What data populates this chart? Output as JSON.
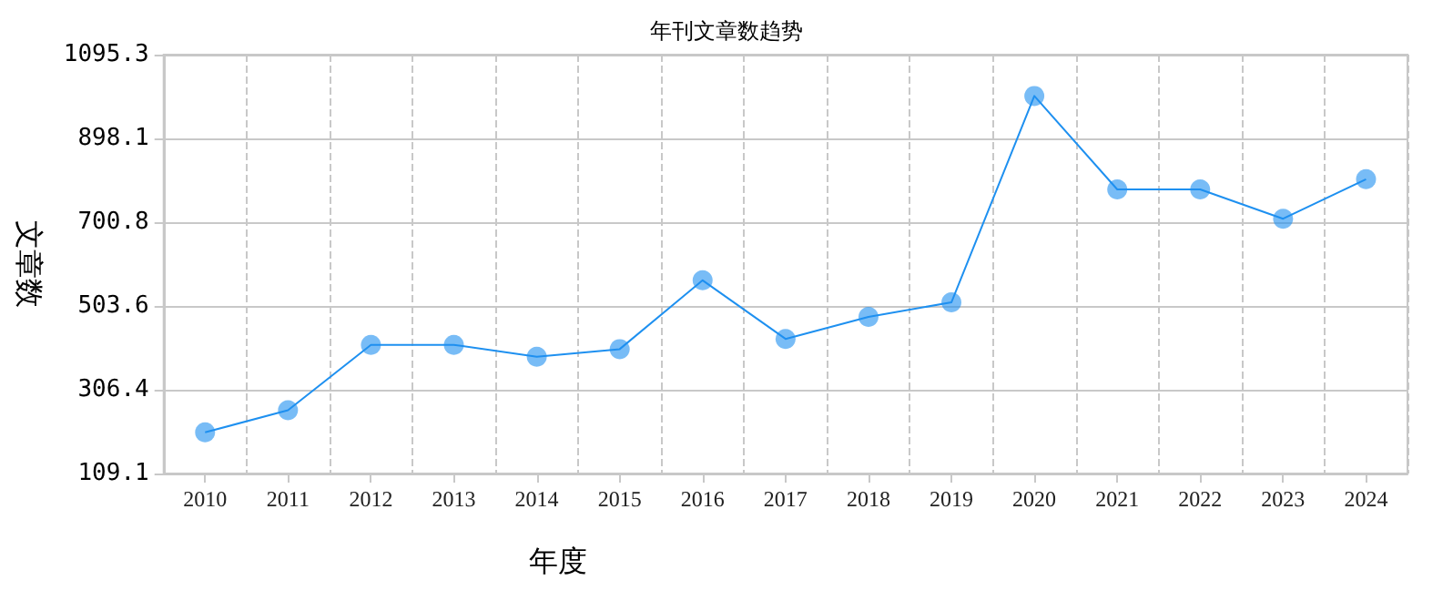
{
  "chart_data": {
    "type": "line",
    "title": "年刊文章数趋势",
    "xlabel": "年度",
    "ylabel": "文章数",
    "categories": [
      "2010",
      "2011",
      "2012",
      "2013",
      "2014",
      "2015",
      "2016",
      "2017",
      "2018",
      "2019",
      "2020",
      "2021",
      "2022",
      "2023",
      "2024"
    ],
    "series": [
      {
        "color": "#1e90f0",
        "values": [
          206,
          258,
          412,
          412,
          384,
          402,
          564,
          426,
          478,
          512,
          998,
          778,
          778,
          709,
          802
        ]
      }
    ],
    "ylim": [
      109.1,
      1095.3
    ],
    "yticks": [
      109.1,
      306.4,
      503.6,
      700.8,
      898.1,
      1095.3
    ],
    "grid": true,
    "marker": "circle",
    "line_style": "solid"
  }
}
